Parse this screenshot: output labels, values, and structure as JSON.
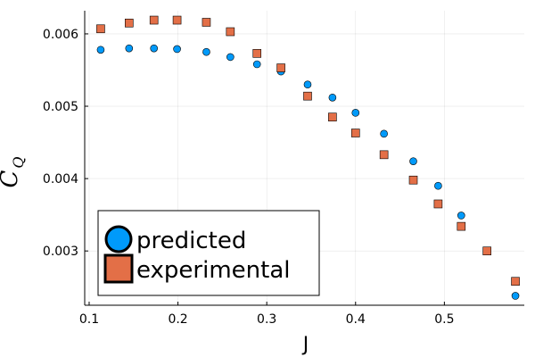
{
  "chart_data": {
    "type": "scatter",
    "xlabel": "J",
    "ylabel": "C",
    "ylabel_subscript": "Q",
    "xlim": [
      0.095,
      0.59
    ],
    "ylim": [
      0.00225,
      0.00632
    ],
    "x_ticks": [
      0.1,
      0.2,
      0.3,
      0.4,
      0.5
    ],
    "x_tick_labels": [
      "0.1",
      "0.2",
      "0.3",
      "0.4",
      "0.5"
    ],
    "y_ticks": [
      0.003,
      0.004,
      0.005,
      0.006
    ],
    "y_tick_labels": [
      "0.003",
      "0.004",
      "0.005",
      "0.006"
    ],
    "grid": true,
    "legend_position": "bottom-left",
    "series": [
      {
        "name": "predicted",
        "marker": "circle",
        "color": "#009AFA",
        "x": [
          0.113,
          0.145,
          0.173,
          0.199,
          0.232,
          0.259,
          0.289,
          0.316,
          0.346,
          0.374,
          0.4,
          0.432,
          0.465,
          0.493,
          0.519,
          0.548,
          0.58
        ],
        "y": [
          0.00578,
          0.0058,
          0.0058,
          0.00579,
          0.00575,
          0.00568,
          0.00558,
          0.00548,
          0.0053,
          0.00512,
          0.00491,
          0.00462,
          0.00424,
          0.0039,
          0.00349,
          null,
          0.00238
        ]
      },
      {
        "name": "experimental",
        "marker": "square",
        "color": "#E36F47",
        "x": [
          0.113,
          0.145,
          0.173,
          0.199,
          0.232,
          0.259,
          0.289,
          0.316,
          0.346,
          0.374,
          0.4,
          0.432,
          0.465,
          0.493,
          0.519,
          0.548,
          0.58
        ],
        "y": [
          0.00607,
          0.00615,
          0.00619,
          0.00619,
          0.00616,
          0.00603,
          0.00573,
          0.00553,
          0.00514,
          0.00485,
          0.00463,
          0.00433,
          0.00398,
          0.00365,
          0.00334,
          0.003,
          0.00258
        ]
      }
    ]
  }
}
